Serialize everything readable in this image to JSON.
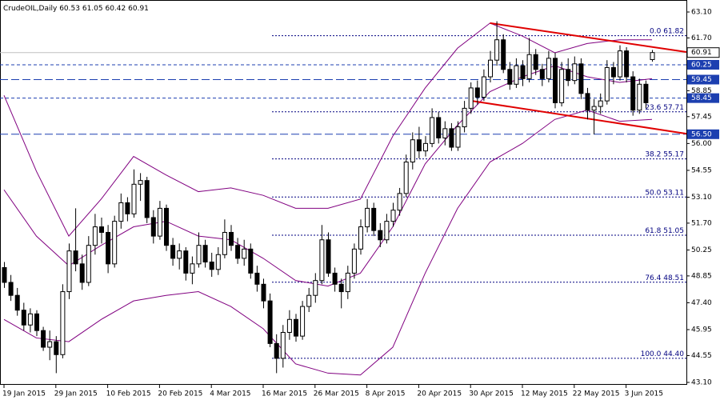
{
  "chart_data": {
    "type": "candlestick",
    "symbol": "CrudeOIL,Daily",
    "categories": [
      "19 Jan 2015",
      null,
      null,
      null,
      null,
      null,
      null,
      null,
      "29 Jan 2015",
      null,
      null,
      null,
      null,
      null,
      null,
      null,
      "10 Feb 2015",
      null,
      null,
      null,
      null,
      null,
      null,
      null,
      "20 Feb 2015",
      null,
      null,
      null,
      null,
      null,
      null,
      null,
      "4 Mar 2015",
      null,
      null,
      null,
      null,
      null,
      null,
      null,
      "16 Mar 2015",
      null,
      null,
      null,
      null,
      null,
      null,
      null,
      "26 Mar 2015",
      null,
      null,
      null,
      null,
      null,
      null,
      null,
      "8 Apr 2015",
      null,
      null,
      null,
      null,
      null,
      null,
      null,
      "20 Apr 2015",
      null,
      null,
      null,
      null,
      null,
      null,
      null,
      "30 Apr 2015",
      null,
      null,
      null,
      null,
      null,
      null,
      null,
      "12 May 2015",
      null,
      null,
      null,
      null,
      null,
      null,
      null,
      "22 May 2015",
      null,
      null,
      null,
      null,
      null,
      null,
      null,
      "3 Jun 2015",
      null,
      null,
      null,
      null
    ],
    "candles": [
      [
        49.3,
        49.6,
        48.2,
        48.5
      ],
      [
        48.5,
        48.9,
        47.5,
        47.8
      ],
      [
        47.8,
        48.2,
        46.7,
        47.0
      ],
      [
        47.0,
        47.4,
        45.9,
        46.2
      ],
      [
        46.2,
        47.1,
        45.8,
        46.8
      ],
      [
        46.8,
        47.0,
        45.6,
        45.9
      ],
      [
        45.9,
        46.1,
        44.8,
        45.0
      ],
      [
        45.0,
        45.9,
        44.3,
        45.3
      ],
      [
        45.3,
        45.6,
        43.6,
        44.6
      ],
      [
        44.6,
        48.4,
        44.4,
        48.0
      ],
      [
        48.0,
        50.6,
        47.6,
        50.2
      ],
      [
        50.2,
        52.5,
        49.1,
        49.5
      ],
      [
        49.5,
        50.0,
        48.1,
        48.5
      ],
      [
        48.5,
        51.0,
        48.3,
        50.5
      ],
      [
        50.5,
        52.2,
        50.0,
        51.5
      ],
      [
        51.5,
        52.0,
        50.6,
        51.2
      ],
      [
        51.2,
        51.6,
        49.0,
        49.5
      ],
      [
        49.5,
        52.1,
        49.3,
        51.8
      ],
      [
        51.8,
        53.3,
        51.4,
        52.8
      ],
      [
        52.8,
        53.1,
        51.8,
        52.2
      ],
      [
        52.2,
        54.6,
        52.0,
        53.8
      ],
      [
        53.8,
        54.4,
        52.9,
        54.0
      ],
      [
        54.0,
        54.2,
        51.7,
        52.0
      ],
      [
        52.0,
        52.4,
        50.6,
        51.0
      ],
      [
        51.0,
        52.9,
        50.8,
        52.5
      ],
      [
        52.5,
        52.7,
        50.2,
        50.5
      ],
      [
        50.5,
        50.9,
        49.4,
        49.8
      ],
      [
        49.8,
        50.6,
        49.2,
        50.2
      ],
      [
        50.2,
        50.4,
        48.6,
        49.0
      ],
      [
        49.0,
        49.9,
        48.4,
        49.5
      ],
      [
        49.5,
        51.2,
        49.3,
        50.5
      ],
      [
        50.5,
        50.8,
        49.3,
        49.6
      ],
      [
        49.6,
        50.1,
        48.8,
        49.2
      ],
      [
        49.2,
        50.4,
        48.9,
        50.0
      ],
      [
        50.0,
        51.9,
        49.8,
        51.2
      ],
      [
        51.2,
        51.6,
        50.2,
        50.5
      ],
      [
        50.5,
        50.9,
        49.5,
        49.8
      ],
      [
        49.8,
        50.8,
        49.4,
        50.3
      ],
      [
        50.3,
        50.6,
        48.7,
        49.0
      ],
      [
        49.0,
        49.4,
        48.0,
        48.4
      ],
      [
        48.4,
        48.7,
        47.1,
        47.5
      ],
      [
        47.5,
        47.9,
        45.0,
        45.2
      ],
      [
        45.2,
        45.7,
        43.6,
        44.4
      ],
      [
        44.4,
        46.2,
        43.9,
        45.8
      ],
      [
        45.8,
        47.0,
        45.4,
        46.5
      ],
      [
        46.5,
        46.8,
        45.3,
        45.6
      ],
      [
        45.6,
        47.5,
        45.4,
        47.2
      ],
      [
        47.2,
        48.2,
        46.9,
        47.8
      ],
      [
        47.8,
        49.0,
        47.4,
        48.6
      ],
      [
        48.6,
        51.6,
        48.4,
        50.8
      ],
      [
        50.8,
        51.2,
        48.8,
        49.0
      ],
      [
        49.0,
        49.3,
        48.0,
        48.4
      ],
      [
        48.4,
        48.7,
        47.1,
        48.0
      ],
      [
        48.0,
        49.4,
        47.6,
        49.0
      ],
      [
        49.0,
        50.6,
        48.7,
        50.3
      ],
      [
        50.3,
        51.9,
        50.0,
        51.5
      ],
      [
        51.5,
        53.0,
        51.2,
        52.5
      ],
      [
        52.5,
        52.8,
        51.0,
        51.3
      ],
      [
        51.3,
        51.7,
        50.4,
        50.8
      ],
      [
        50.8,
        52.2,
        50.6,
        51.8
      ],
      [
        51.8,
        52.8,
        51.5,
        52.4
      ],
      [
        52.4,
        53.6,
        52.1,
        53.3
      ],
      [
        53.3,
        55.4,
        53.1,
        55.0
      ],
      [
        55.0,
        56.6,
        54.6,
        56.2
      ],
      [
        56.2,
        56.9,
        55.2,
        55.6
      ],
      [
        55.6,
        56.4,
        55.3,
        56.0
      ],
      [
        56.0,
        57.9,
        55.8,
        57.4
      ],
      [
        57.4,
        57.7,
        56.0,
        56.3
      ],
      [
        56.3,
        57.2,
        55.9,
        56.8
      ],
      [
        56.8,
        57.1,
        55.6,
        55.8
      ],
      [
        55.8,
        57.2,
        55.6,
        56.9
      ],
      [
        56.9,
        58.3,
        56.6,
        57.9
      ],
      [
        57.9,
        59.3,
        57.6,
        59.0
      ],
      [
        59.0,
        59.4,
        58.1,
        58.5
      ],
      [
        58.5,
        60.0,
        58.3,
        59.6
      ],
      [
        59.6,
        61.0,
        59.3,
        60.5
      ],
      [
        60.5,
        62.6,
        60.2,
        61.6
      ],
      [
        61.6,
        61.9,
        59.8,
        60.0
      ],
      [
        60.0,
        60.4,
        58.9,
        59.2
      ],
      [
        59.2,
        60.6,
        59.0,
        60.2
      ],
      [
        60.2,
        60.5,
        59.1,
        59.5
      ],
      [
        59.5,
        61.7,
        59.3,
        60.8
      ],
      [
        60.8,
        61.1,
        59.7,
        60.0
      ],
      [
        60.0,
        60.3,
        59.1,
        59.5
      ],
      [
        59.5,
        61.0,
        59.3,
        60.6
      ],
      [
        60.6,
        60.9,
        57.9,
        58.2
      ],
      [
        58.2,
        60.4,
        58.0,
        60.0
      ],
      [
        60.0,
        60.6,
        59.1,
        59.4
      ],
      [
        59.4,
        60.7,
        59.2,
        60.3
      ],
      [
        60.3,
        60.6,
        58.4,
        58.7
      ],
      [
        58.7,
        59.0,
        57.3,
        57.8
      ],
      [
        57.8,
        58.4,
        56.5,
        58.0
      ],
      [
        58.0,
        58.7,
        57.6,
        58.3
      ],
      [
        58.3,
        60.5,
        58.1,
        60.1
      ],
      [
        60.1,
        60.4,
        59.2,
        59.6
      ],
      [
        59.6,
        61.3,
        59.4,
        61.0
      ],
      [
        61.0,
        61.2,
        59.3,
        59.6
      ],
      [
        59.6,
        59.9,
        57.5,
        57.8
      ],
      [
        57.8,
        59.5,
        57.6,
        59.2
      ],
      [
        59.2,
        59.4,
        57.9,
        58.2
      ],
      [
        60.53,
        61.05,
        60.42,
        60.91
      ]
    ],
    "ylim": [
      43.1,
      63.1
    ],
    "yticks": [
      {
        "value": 63.1,
        "label": "63.10"
      },
      {
        "value": 61.7,
        "label": "61.70"
      },
      {
        "value": 60.25,
        "label": "60.25"
      },
      {
        "value": 58.85,
        "label": "58.85"
      },
      {
        "value": 57.45,
        "label": "57.45"
      },
      {
        "value": 56,
        "label": "56.00"
      },
      {
        "value": 54.55,
        "label": "54.55"
      },
      {
        "value": 53.1,
        "label": "53.10"
      },
      {
        "value": 51.7,
        "label": "51.70"
      },
      {
        "value": 50.25,
        "label": "50.25"
      },
      {
        "value": 48.85,
        "label": "48.85"
      },
      {
        "value": 47.4,
        "label": "47.40"
      },
      {
        "value": 45.95,
        "label": "45.95"
      },
      {
        "value": 44.55,
        "label": "44.55"
      },
      {
        "value": 43.1,
        "label": "43.10"
      }
    ],
    "levels": [
      60.25,
      59.45,
      58.45,
      {
        "value": 56.5,
        "label": "56.50"
      }
    ],
    "level_color": "#1c3fb0",
    "fibonacci": [
      {
        "ratio": "0.0",
        "price": 61.82
      },
      {
        "ratio": "23.6",
        "price": 57.71
      },
      {
        "ratio": "38.2",
        "price": 55.17
      },
      {
        "ratio": "50.0",
        "price": 53.11
      },
      {
        "ratio": "61.8",
        "price": 51.05
      },
      {
        "ratio": "76.4",
        "price": 48.51
      },
      {
        "ratio": "100.0",
        "price": {
          "value": 44.4,
          "label": "44.40"
        }
      }
    ],
    "fib_color": "#000080",
    "bands": {
      "x": [
        0,
        5,
        10,
        15,
        20,
        25,
        30,
        35,
        40,
        45,
        50,
        55,
        60,
        65,
        70,
        75,
        80,
        85,
        90,
        95,
        100
      ],
      "upper": [
        58.6,
        54.5,
        51.0,
        53.0,
        55.3,
        54.3,
        53.4,
        53.6,
        53.2,
        52.5,
        52.5,
        53.0,
        56.4,
        59.0,
        61.15,
        62.5,
        61.8,
        60.9,
        61.4,
        61.6,
        61.6
      ],
      "middle": [
        53.5,
        51.0,
        49.4,
        50.5,
        51.5,
        51.8,
        51.0,
        50.8,
        49.8,
        48.6,
        48.3,
        49.0,
        51.5,
        54.9,
        57.0,
        58.8,
        59.6,
        60.2,
        59.6,
        59.3,
        59.5
      ],
      "lower": [
        46.5,
        45.5,
        45.3,
        46.5,
        47.5,
        47.8,
        48.0,
        47.2,
        46.0,
        44.1,
        43.6,
        43.5,
        45.0,
        49.0,
        52.5,
        55.0,
        56.0,
        57.3,
        57.8,
        57.2,
        57.3
      ],
      "color": "#800080"
    },
    "trendlines": [
      {
        "from": [
          75,
          62.5
        ],
        "to": [
          105.3,
          60.94
        ]
      },
      {
        "from": [
          72,
          58.31
        ],
        "to": [
          105.3,
          56.53
        ]
      }
    ],
    "trend_color": "#e00000"
  }
}
